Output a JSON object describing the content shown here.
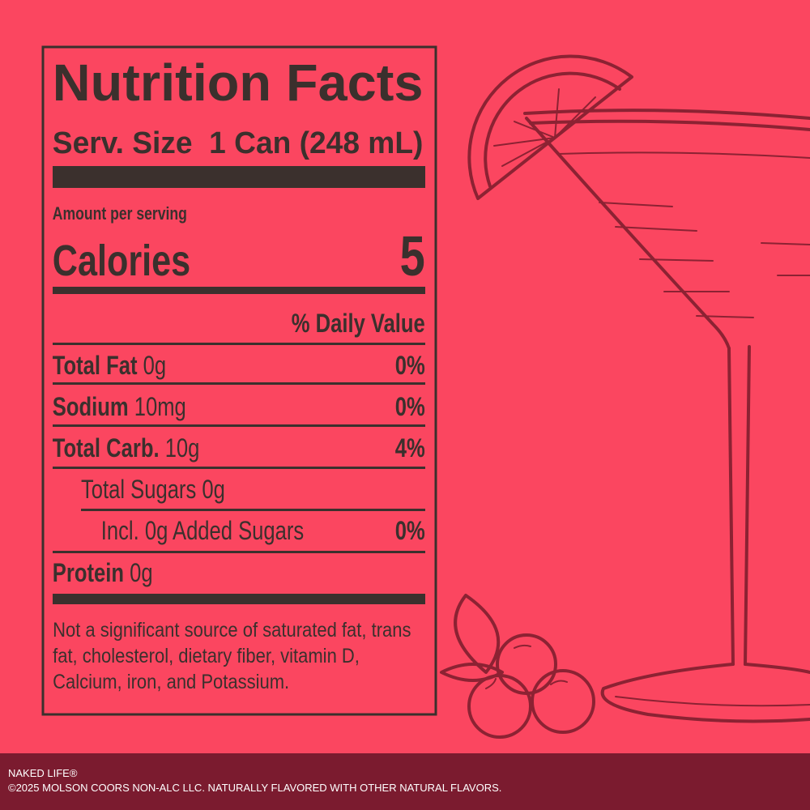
{
  "label": {
    "title": "Nutrition Facts",
    "serving_size": "Serv. Size  1 Can (248 mL)",
    "amount_per_serving": "Amount per serving",
    "calories_label": "Calories",
    "calories_value": "5",
    "daily_value_header": "% Daily Value",
    "rows": [
      {
        "name": "Total Fat",
        "amount": "0g",
        "dv": "0%"
      },
      {
        "name": "Sodium",
        "amount": "10mg",
        "dv": "0%"
      },
      {
        "name": "Total Carb.",
        "amount": "10g",
        "dv": "4%"
      },
      {
        "name": "Total Sugars",
        "amount": "0g"
      },
      {
        "name": "Incl. 0g Added Sugars",
        "dv": "0%"
      },
      {
        "name": "Protein",
        "amount": "0g"
      }
    ],
    "footnote_lines": [
      "Not a significant source of saturated fat, trans",
      "fat, cholesterol, dietary fiber, vitamin D,",
      "Calcium, iron, and Potassium."
    ]
  },
  "footer": {
    "brand": "NAKED LIFE®",
    "legal": "©2025 MOLSON COORS NON-ALC LLC. NATURALLY FLAVORED WITH OTHER NATURAL FLAVORS."
  }
}
